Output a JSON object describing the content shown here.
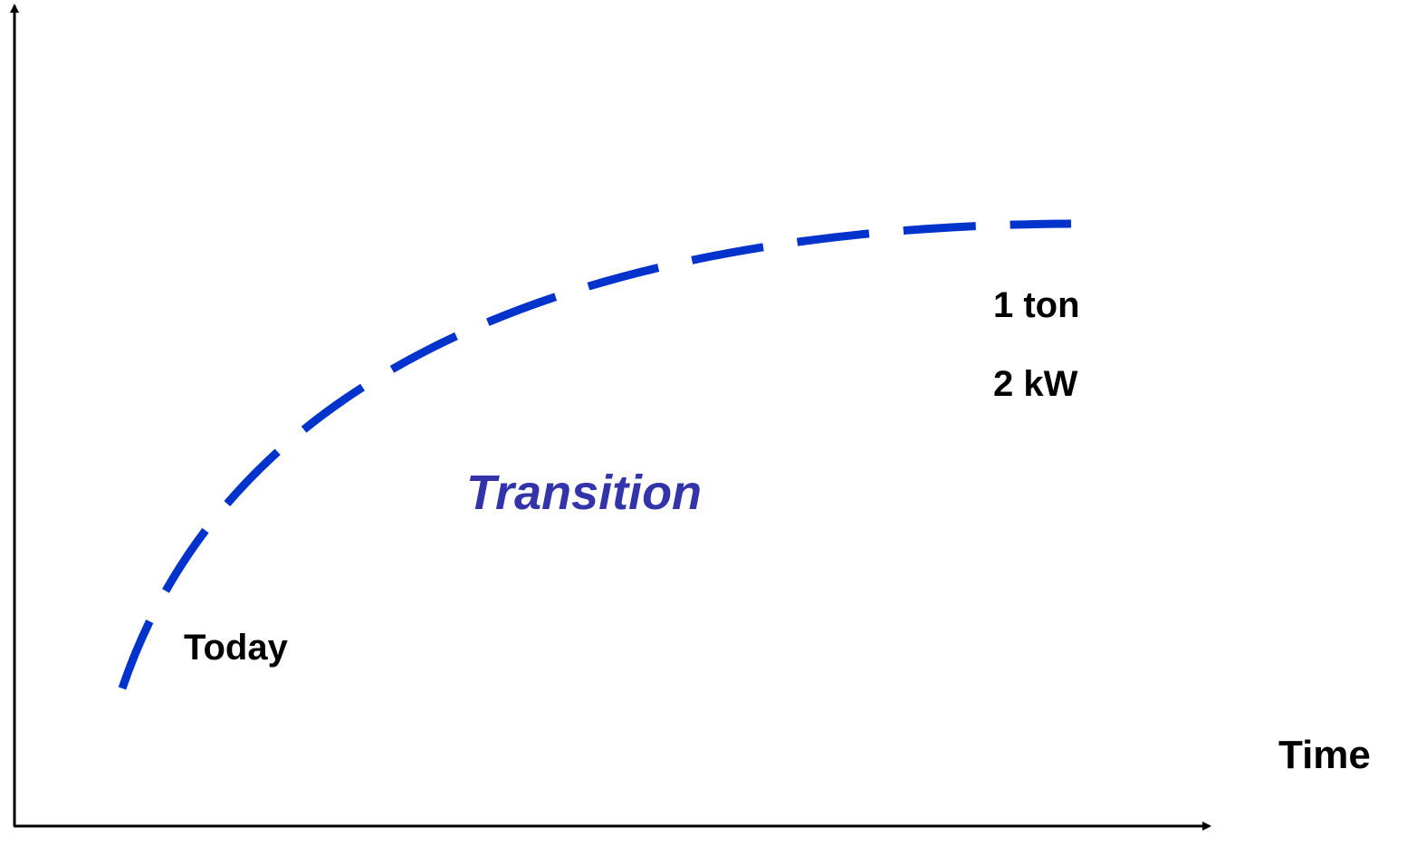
{
  "labels": {
    "start": "Today",
    "middle": "Transition",
    "end_mass": "1 ton",
    "end_power": "2 kW",
    "x_axis": "Time"
  }
}
